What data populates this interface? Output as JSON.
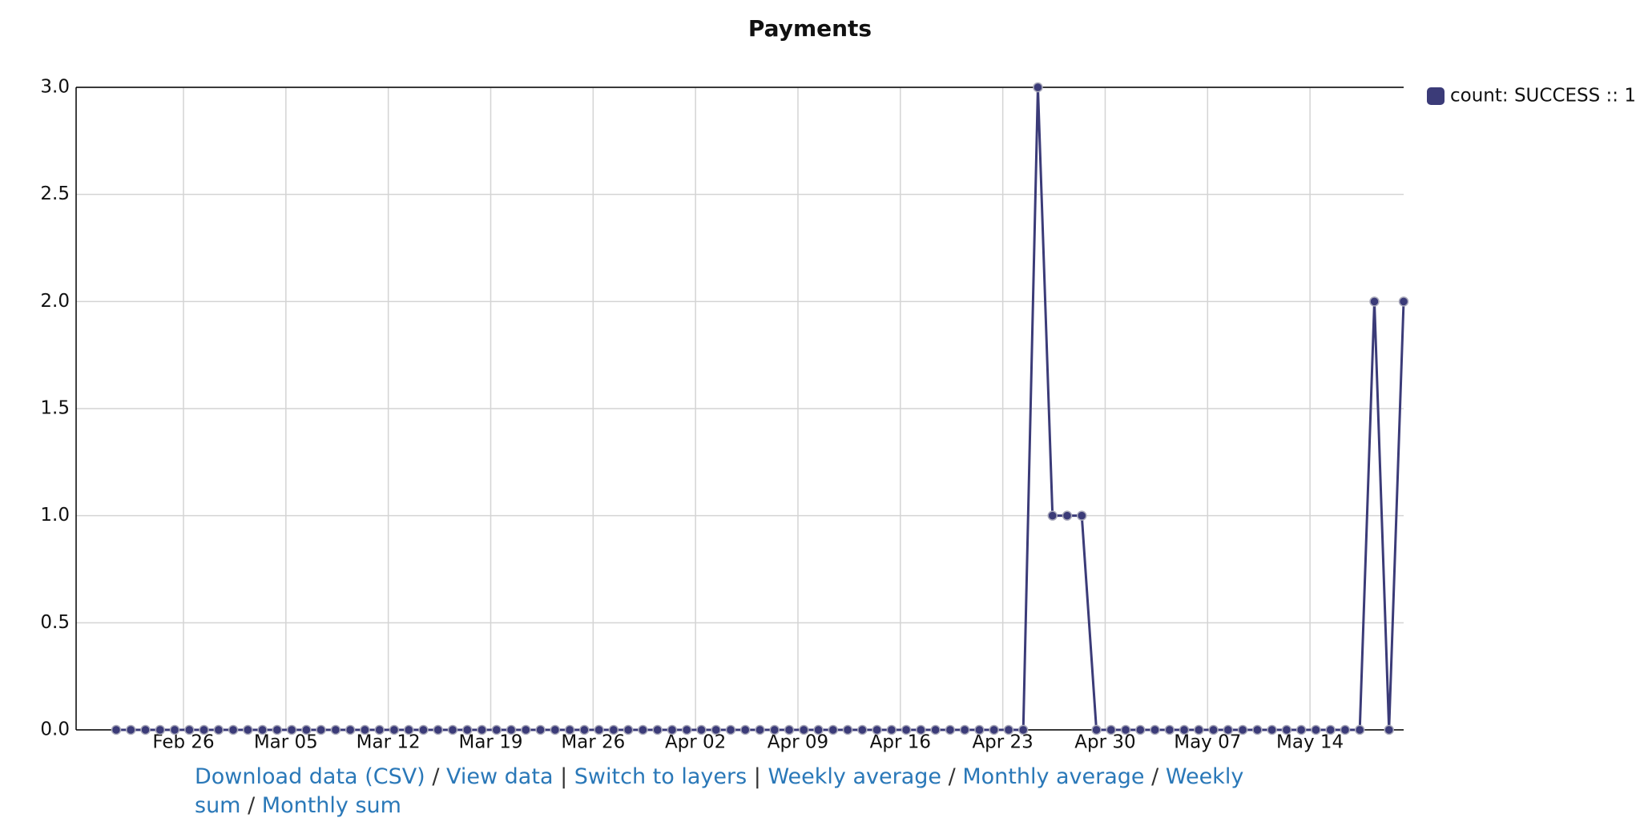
{
  "chart_data": {
    "type": "line",
    "title": "Payments",
    "categories": [
      null,
      null,
      null,
      null,
      null,
      "Feb 26",
      null,
      null,
      null,
      null,
      null,
      null,
      "Mar 05",
      null,
      null,
      null,
      null,
      null,
      null,
      "Mar 12",
      null,
      null,
      null,
      null,
      null,
      null,
      "Mar 19",
      null,
      null,
      null,
      null,
      null,
      null,
      "Mar 26",
      null,
      null,
      null,
      null,
      null,
      null,
      "Apr 02",
      null,
      null,
      null,
      null,
      null,
      null,
      "Apr 09",
      null,
      null,
      null,
      null,
      null,
      null,
      "Apr 16",
      null,
      null,
      null,
      null,
      null,
      null,
      "Apr 23",
      null,
      null,
      null,
      null,
      null,
      null,
      "Apr 30",
      null,
      null,
      null,
      null,
      null,
      null,
      "May 07",
      null,
      null,
      null,
      null,
      null,
      null,
      "May 14",
      null,
      null,
      null,
      null,
      null,
      null
    ],
    "series": [
      {
        "name": "count: SUCCESS :: 1",
        "color": "#3b3b78",
        "values": [
          0,
          0,
          0,
          0,
          0,
          0,
          0,
          0,
          0,
          0,
          0,
          0,
          0,
          0,
          0,
          0,
          0,
          0,
          0,
          0,
          0,
          0,
          0,
          0,
          0,
          0,
          0,
          0,
          0,
          0,
          0,
          0,
          0,
          0,
          0,
          0,
          0,
          0,
          0,
          0,
          0,
          0,
          0,
          0,
          0,
          0,
          0,
          0,
          0,
          0,
          0,
          0,
          0,
          0,
          0,
          0,
          0,
          0,
          0,
          0,
          0,
          0,
          0,
          3,
          1,
          1,
          1,
          0,
          0,
          0,
          0,
          0,
          0,
          0,
          0,
          0,
          0,
          0,
          0,
          0,
          0,
          0,
          0,
          0,
          0,
          0,
          2,
          0,
          2
        ]
      }
    ],
    "ylim": [
      0,
      3
    ],
    "yticks": [
      {
        "value": 0,
        "label": "0.0"
      },
      {
        "value": 0.5,
        "label": "0.5"
      },
      {
        "value": 1,
        "label": "1.0"
      },
      {
        "value": 1.5,
        "label": "1.5"
      },
      {
        "value": 2,
        "label": "2.0"
      },
      {
        "value": 2.5,
        "label": "2.5"
      },
      {
        "value": 3,
        "label": "3.0"
      }
    ],
    "grid": true,
    "legend": "right"
  },
  "links": [
    "Download data (CSV)",
    "View data",
    "Switch to layers",
    "Weekly average",
    "Monthly average",
    "Weekly sum",
    "Monthly sum"
  ],
  "separators": [
    "/",
    "|",
    "|",
    "/",
    "/",
    "/"
  ]
}
